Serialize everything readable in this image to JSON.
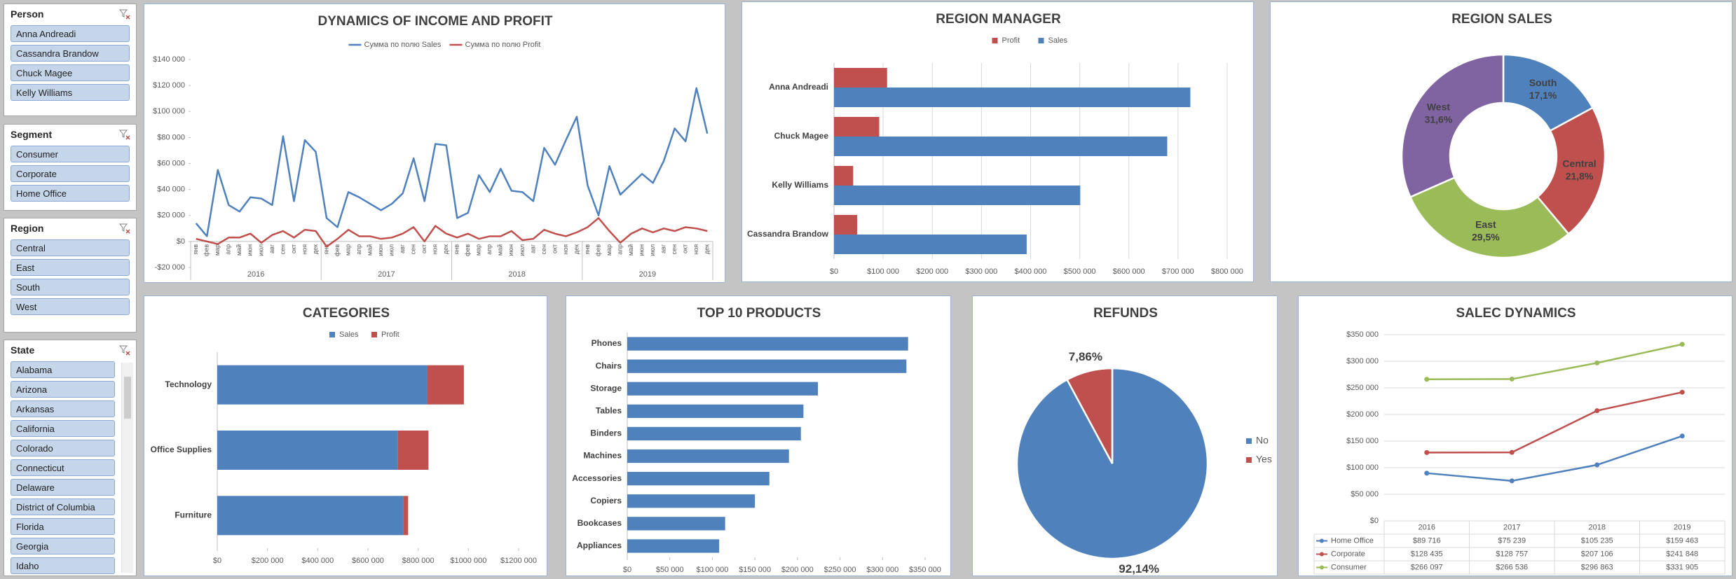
{
  "slicers": [
    {
      "title": "Person",
      "items": [
        "Anna Andreadi",
        "Cassandra Brandow",
        "Chuck Magee",
        "Kelly Williams"
      ]
    },
    {
      "title": "Segment",
      "items": [
        "Consumer",
        "Corporate",
        "Home Office"
      ]
    },
    {
      "title": "Region",
      "items": [
        "Central",
        "East",
        "South",
        "West"
      ]
    },
    {
      "title": "State",
      "items": [
        "Alabama",
        "Arizona",
        "Arkansas",
        "California",
        "Colorado",
        "Connecticut",
        "Delaware",
        "District of Columbia",
        "Florida",
        "Georgia",
        "Idaho"
      ]
    }
  ],
  "chart_data": [
    {
      "type": "line",
      "title": "DYNAMICS OF INCOME AND PROFIT",
      "legend": "top",
      "categories": [
        "янв",
        "фев",
        "мар",
        "апр",
        "май",
        "июн",
        "июл",
        "авг",
        "сен",
        "окт",
        "ноя",
        "дек",
        "янв",
        "фев",
        "мар",
        "апр",
        "май",
        "июн",
        "июл",
        "авг",
        "сен",
        "окт",
        "ноя",
        "дек",
        "янв",
        "фев",
        "мар",
        "апр",
        "май",
        "июн",
        "июл",
        "авг",
        "сен",
        "окт",
        "ноя",
        "дек",
        "янв",
        "фев",
        "мар",
        "апр",
        "май",
        "июн",
        "июл",
        "авг",
        "сен",
        "окт",
        "ноя",
        "дек"
      ],
      "x_groups": [
        "2016",
        "2017",
        "2018",
        "2019"
      ],
      "series": [
        {
          "name": "Сумма по полю Sales",
          "color": "#4f81bd",
          "values": [
            14000,
            4000,
            55000,
            28000,
            23000,
            34000,
            33000,
            28000,
            81000,
            31000,
            78000,
            69000,
            18000,
            11000,
            38000,
            34000,
            29000,
            24000,
            29000,
            37000,
            64000,
            31000,
            75000,
            74000,
            18000,
            22000,
            51000,
            38000,
            56000,
            39000,
            38000,
            31000,
            72000,
            59000,
            78000,
            96000,
            43000,
            20000,
            58000,
            36000,
            44000,
            52000,
            45000,
            62000,
            87000,
            77000,
            118000,
            83000
          ]
        },
        {
          "name": "Сумма по полю Profit",
          "color": "#c0504d",
          "values": [
            2000,
            0,
            -2000,
            3000,
            3000,
            6000,
            -1000,
            5000,
            8000,
            3000,
            9000,
            8000,
            -4000,
            2000,
            9000,
            4000,
            4000,
            2000,
            3000,
            6000,
            11000,
            0,
            12000,
            6000,
            3000,
            6000,
            2000,
            4000,
            4000,
            8000,
            1000,
            2000,
            9000,
            6000,
            4000,
            7000,
            11000,
            18000,
            8000,
            -1000,
            6000,
            10000,
            7000,
            10000,
            8000,
            11000,
            10000,
            8000
          ]
        }
      ],
      "ylim": [
        -20000,
        140000
      ],
      "yticks": [
        {
          "value": -20000,
          "label": "-$20 000"
        },
        {
          "value": 0,
          "label": "$0"
        },
        {
          "value": 20000,
          "label": "$20 000"
        },
        {
          "value": 40000,
          "label": "$40 000"
        },
        {
          "value": 60000,
          "label": "$60 000"
        },
        {
          "value": 80000,
          "label": "$80 000"
        },
        {
          "value": 100000,
          "label": "$100 000"
        },
        {
          "value": 120000,
          "label": "$120 000"
        },
        {
          "value": 140000,
          "label": "$140 000"
        }
      ],
      "grid": false
    },
    {
      "type": "bar",
      "title": "REGION MANAGER",
      "horizontal": true,
      "stacked": false,
      "legend": "top",
      "grid": true,
      "categories": [
        "Anna Andreadi",
        "Chuck Magee",
        "Kelly Williams",
        "Cassandra Brandow"
      ],
      "series": [
        {
          "name": "Profit",
          "color": "#c0504d",
          "values": [
            108000,
            92000,
            39000,
            47000
          ]
        },
        {
          "name": "Sales",
          "color": "#4f81bd",
          "values": [
            725000,
            678000,
            501000,
            392000
          ]
        }
      ],
      "xlim": [
        0,
        800000
      ],
      "xticks": [
        {
          "value": 0,
          "label": "$0"
        },
        {
          "value": 100000,
          "label": "$100 000"
        },
        {
          "value": 200000,
          "label": "$200 000"
        },
        {
          "value": 300000,
          "label": "$300 000"
        },
        {
          "value": 400000,
          "label": "$400 000"
        },
        {
          "value": 500000,
          "label": "$500 000"
        },
        {
          "value": 600000,
          "label": "$600 000"
        },
        {
          "value": 700000,
          "label": "$700 000"
        },
        {
          "value": 800000,
          "label": "$800 000"
        }
      ]
    },
    {
      "type": "donut",
      "title": "REGION SALES",
      "categories": [
        "South",
        "Central",
        "East",
        "West"
      ],
      "values": [
        17.1,
        21.8,
        29.5,
        31.6
      ],
      "value_labels": [
        "17,1%",
        "21,8%",
        "29,5%",
        "31,6%"
      ],
      "colors": [
        "#4f81bd",
        "#c0504d",
        "#9bbb59",
        "#8064a2"
      ]
    },
    {
      "type": "bar",
      "title": "CATEGORIES",
      "horizontal": true,
      "stacked": true,
      "legend": "top",
      "grid": false,
      "categories": [
        "Technology",
        "Office Supplies",
        "Furniture"
      ],
      "series": [
        {
          "name": "Sales",
          "color": "#4f81bd",
          "values": [
            836000,
            719000,
            742000
          ]
        },
        {
          "name": "Profit",
          "color": "#c0504d",
          "values": [
            146000,
            122000,
            18000
          ]
        }
      ],
      "xlim": [
        0,
        1200000
      ],
      "xticks": [
        {
          "value": 0,
          "label": "$0"
        },
        {
          "value": 200000,
          "label": "$200 000"
        },
        {
          "value": 400000,
          "label": "$400 000"
        },
        {
          "value": 600000,
          "label": "$600 000"
        },
        {
          "value": 800000,
          "label": "$800 000"
        },
        {
          "value": 1000000,
          "label": "$1000 000"
        },
        {
          "value": 1200000,
          "label": "$1200 000"
        }
      ]
    },
    {
      "type": "bar",
      "title": "TOP  10 PRODUCTS",
      "horizontal": true,
      "stacked": false,
      "grid": false,
      "categories": [
        "Phones",
        "Chairs",
        "Storage",
        "Tables",
        "Binders",
        "Machines",
        "Accessories",
        "Copiers",
        "Bookcases",
        "Appliances"
      ],
      "values": [
        330000,
        328000,
        224000,
        207000,
        204000,
        190000,
        167000,
        150000,
        115000,
        108000
      ],
      "color": "#4f81bd",
      "xlim": [
        0,
        350000
      ],
      "xticks": [
        {
          "value": 0,
          "label": "$0"
        },
        {
          "value": 50000,
          "label": "$50 000"
        },
        {
          "value": 100000,
          "label": "$100 000"
        },
        {
          "value": 150000,
          "label": "$150 000"
        },
        {
          "value": 200000,
          "label": "$200 000"
        },
        {
          "value": 250000,
          "label": "$250 000"
        },
        {
          "value": 300000,
          "label": "$300 000"
        },
        {
          "value": 350000,
          "label": "$350 000"
        }
      ]
    },
    {
      "type": "pie",
      "title": "REFUNDS",
      "legend": "right",
      "categories": [
        "No",
        "Yes"
      ],
      "values": [
        92.14,
        7.86
      ],
      "value_labels": [
        "92,14%",
        "7,86%"
      ],
      "colors": [
        "#4f81bd",
        "#c0504d"
      ]
    },
    {
      "type": "line",
      "title": "SALEC DYNAMICS",
      "data_table": true,
      "markers": true,
      "grid": true,
      "categories": [
        "2016",
        "2017",
        "2018",
        "2019"
      ],
      "series": [
        {
          "name": "Home Office",
          "color": "#4f81bd",
          "values": [
            89716,
            75239,
            105235,
            159463
          ],
          "value_labels": [
            "$89 716",
            "$75 239",
            "$105 235",
            "$159 463"
          ]
        },
        {
          "name": "Corporate",
          "color": "#c0504d",
          "values": [
            128435,
            128757,
            207106,
            241848
          ],
          "value_labels": [
            "$128 435",
            "$128 757",
            "$207 106",
            "$241 848"
          ]
        },
        {
          "name": "Consumer",
          "color": "#9bbb59",
          "values": [
            266097,
            266536,
            296863,
            331905
          ],
          "value_labels": [
            "$266 097",
            "$266 536",
            "$296 863",
            "$331 905"
          ]
        }
      ],
      "ylim": [
        0,
        350000
      ],
      "yticks": [
        {
          "value": 0,
          "label": "$0"
        },
        {
          "value": 50000,
          "label": "$50 000"
        },
        {
          "value": 100000,
          "label": "$100 000"
        },
        {
          "value": 150000,
          "label": "$150 000"
        },
        {
          "value": 200000,
          "label": "$200 000"
        },
        {
          "value": 250000,
          "label": "$250 000"
        },
        {
          "value": 300000,
          "label": "$300 000"
        },
        {
          "value": 350000,
          "label": "$350 000"
        }
      ]
    }
  ]
}
